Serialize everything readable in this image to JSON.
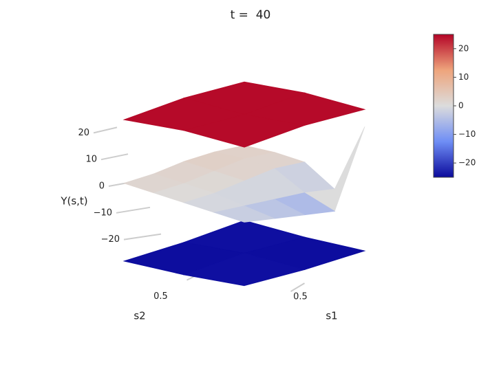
{
  "chart_data": {
    "type": "surface3d",
    "title": "t =  40",
    "zlabel": "Y(s,t)",
    "xlabel": "s1",
    "ylabel": "s2",
    "xlim": [
      0,
      1
    ],
    "ylim": [
      0,
      1
    ],
    "xticks": [
      0.5
    ],
    "yticks": [
      0.5
    ],
    "zlim": [
      -25,
      25
    ],
    "zticks": [
      20,
      10,
      0,
      {
        "value": -10,
        "label": "−10"
      },
      {
        "value": -20,
        "label": "−20"
      }
    ],
    "surfaces": [
      {
        "z": [
          [
            -24,
            -25,
            -25
          ],
          [
            -25,
            -24,
            -25
          ],
          [
            -25,
            -25,
            -24
          ]
        ]
      },
      {
        "z": [
          [
            -2,
            -1,
            0,
            1,
            2
          ],
          [
            -4,
            -2,
            0,
            1,
            2
          ],
          [
            -6,
            -3,
            1,
            2,
            3
          ],
          [
            -8,
            -4,
            2,
            3,
            3
          ],
          [
            18,
            -6,
            1,
            2,
            2
          ]
        ]
      },
      {
        "z": [
          [
            24,
            25,
            24
          ],
          [
            25,
            24,
            25
          ],
          [
            24,
            25,
            24
          ]
        ]
      }
    ],
    "colorbar": {
      "clim": [
        -25,
        25
      ],
      "ticks": [
        20,
        10,
        0,
        {
          "value": -10,
          "label": "−10"
        },
        {
          "value": -20,
          "label": "−20"
        }
      ]
    },
    "colorscale": [
      "#0b0a9c",
      "#6f8ef5",
      "#dcdcdc",
      "#eea47c",
      "#b40426"
    ]
  }
}
